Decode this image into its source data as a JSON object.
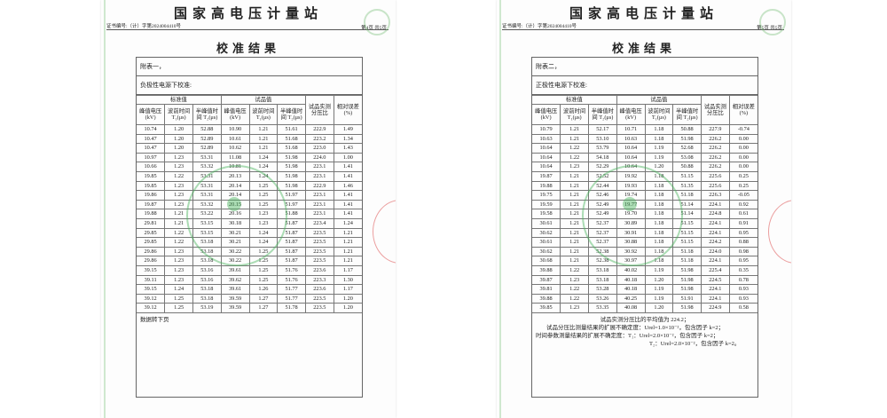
{
  "header": {
    "station": "国家高电压计量站",
    "cert_no": "证书编号:（计）字第2024004410号",
    "title": "校准结果"
  },
  "colors": {
    "stamp_green": "#46b45a",
    "stamp_red": "#dc5050"
  },
  "columns": {
    "group_std": "标准值",
    "group_test": "试品值",
    "peak_v": "峰值电压(kV)",
    "front_time": "波前时间 T₁(μs)",
    "half_time": "半峰值时间 T₂(μs)",
    "ratio": "试品实测分压比",
    "rel_error": "相对误差(%)"
  },
  "pages": [
    {
      "page_no": "第4页 共5页",
      "appendix": "附表一，",
      "condition": "负极性电源下校准:",
      "rows": [
        [
          "10.74",
          "1.20",
          "52.88",
          "10.90",
          "1.21",
          "51.61",
          "222.9",
          "1.49"
        ],
        [
          "10.47",
          "1.20",
          "52.89",
          "10.61",
          "1.21",
          "51.68",
          "223.2",
          "1.34"
        ],
        [
          "10.47",
          "1.20",
          "52.89",
          "10.62",
          "1.21",
          "51.68",
          "223.0",
          "1.43"
        ],
        [
          "10.97",
          "1.23",
          "53.31",
          "11.08",
          "1.24",
          "51.98",
          "224.0",
          "1.00"
        ],
        [
          "10.66",
          "1.23",
          "53.32",
          "10.81",
          "1.24",
          "51.98",
          "223.1",
          "1.41"
        ],
        [
          "19.85",
          "1.22",
          "53.31",
          "20.13",
          "1.24",
          "51.98",
          "223.1",
          "1.41"
        ],
        [
          "19.85",
          "1.23",
          "53.31",
          "20.14",
          "1.25",
          "51.98",
          "222.9",
          "1.46"
        ],
        [
          "19.86",
          "1.23",
          "53.31",
          "20.14",
          "1.25",
          "51.97",
          "223.1",
          "1.41"
        ],
        [
          "19.87",
          "1.23",
          "53.32",
          "20.15",
          "1.25",
          "51.97",
          "223.1",
          "1.41"
        ],
        [
          "19.88",
          "1.21",
          "53.22",
          "20.16",
          "1.23",
          "51.88",
          "223.1",
          "1.41"
        ],
        [
          "29.81",
          "1.21",
          "53.15",
          "30.18",
          "1.23",
          "51.87",
          "223.4",
          "1.24"
        ],
        [
          "29.85",
          "1.22",
          "53.15",
          "30.21",
          "1.24",
          "51.87",
          "223.5",
          "1.21"
        ],
        [
          "29.85",
          "1.22",
          "53.18",
          "30.21",
          "1.24",
          "51.87",
          "223.5",
          "1.21"
        ],
        [
          "29.86",
          "1.23",
          "53.18",
          "30.22",
          "1.25",
          "51.87",
          "223.5",
          "1.21"
        ],
        [
          "29.86",
          "1.23",
          "53.18",
          "30.22",
          "1.25",
          "51.87",
          "223.5",
          "1.21"
        ],
        [
          "39.15",
          "1.23",
          "53.16",
          "39.61",
          "1.25",
          "51.76",
          "223.6",
          "1.17"
        ],
        [
          "39.11",
          "1.23",
          "53.16",
          "39.62",
          "1.25",
          "51.76",
          "223.3",
          "1.30"
        ],
        [
          "39.15",
          "1.24",
          "53.18",
          "39.61",
          "1.26",
          "51.77",
          "223.6",
          "1.17"
        ],
        [
          "39.12",
          "1.25",
          "53.18",
          "39.59",
          "1.27",
          "51.77",
          "223.5",
          "1.20"
        ],
        [
          "39.12",
          "1.25",
          "53.19",
          "39.59",
          "1.27",
          "51.78",
          "223.5",
          "1.20"
        ]
      ],
      "footer": "数据转下页"
    },
    {
      "page_no": "第5页 共5页",
      "appendix": "附表二，",
      "condition": "正极性电源下校准:",
      "rows": [
        [
          "10.79",
          "1.21",
          "52.17",
          "10.71",
          "1.18",
          "50.88",
          "227.9",
          "-0.74"
        ],
        [
          "10.63",
          "1.21",
          "53.10",
          "10.63",
          "1.18",
          "51.98",
          "226.2",
          "0.00"
        ],
        [
          "10.64",
          "1.22",
          "53.79",
          "10.64",
          "1.19",
          "52.68",
          "226.2",
          "0.00"
        ],
        [
          "10.64",
          "1.22",
          "54.18",
          "10.64",
          "1.19",
          "53.08",
          "226.2",
          "0.00"
        ],
        [
          "10.64",
          "1.23",
          "52.29",
          "10.64",
          "1.20",
          "50.88",
          "226.2",
          "0.00"
        ],
        [
          "19.87",
          "1.21",
          "52.52",
          "19.92",
          "1.18",
          "51.15",
          "225.6",
          "0.25"
        ],
        [
          "19.88",
          "1.21",
          "52.44",
          "19.93",
          "1.18",
          "51.35",
          "225.6",
          "0.25"
        ],
        [
          "19.75",
          "1.21",
          "52.46",
          "19.74",
          "1.18",
          "51.18",
          "226.3",
          "-0.05"
        ],
        [
          "19.59",
          "1.21",
          "52.49",
          "19.77",
          "1.18",
          "51.14",
          "224.1",
          "0.92"
        ],
        [
          "19.58",
          "1.21",
          "52.49",
          "19.70",
          "1.18",
          "51.14",
          "224.8",
          "0.61"
        ],
        [
          "30.61",
          "1.21",
          "52.37",
          "30.89",
          "1.18",
          "51.15",
          "224.1",
          "0.91"
        ],
        [
          "30.62",
          "1.21",
          "52.37",
          "30.91",
          "1.18",
          "51.15",
          "224.1",
          "0.95"
        ],
        [
          "30.61",
          "1.21",
          "52.37",
          "30.88",
          "1.18",
          "51.15",
          "224.2",
          "0.88"
        ],
        [
          "30.62",
          "1.21",
          "52.38",
          "30.92",
          "1.18",
          "51.18",
          "224.0",
          "0.98"
        ],
        [
          "30.68",
          "1.21",
          "52.38",
          "30.97",
          "1.18",
          "51.18",
          "224.1",
          "0.95"
        ],
        [
          "39.88",
          "1.22",
          "53.18",
          "40.02",
          "1.19",
          "51.98",
          "225.4",
          "0.35"
        ],
        [
          "39.87",
          "1.23",
          "53.18",
          "40.18",
          "1.20",
          "51.98",
          "224.5",
          "0.78"
        ],
        [
          "39.81",
          "1.22",
          "53.28",
          "40.18",
          "1.19",
          "51.98",
          "224.1",
          "0.93"
        ],
        [
          "39.88",
          "1.22",
          "53.26",
          "40.25",
          "1.19",
          "51.91",
          "224.1",
          "0.93"
        ],
        [
          "39.85",
          "1.23",
          "53.35",
          "40.08",
          "1.20",
          "51.98",
          "224.9",
          "0.58"
        ]
      ],
      "summary": [
        "试品实测分压比的平均值为 224.2；",
        "试品分压比测量结果的扩展不确定度：Urel=1.0×10⁻²，包含因子 k=2；",
        "时间参数测量结果的扩展不确定度：T₁：Urel=2.0×10⁻²，包含因子 k=2；",
        "T₂：Urel=2.0×10⁻²，包含因子 k=2。"
      ]
    }
  ]
}
